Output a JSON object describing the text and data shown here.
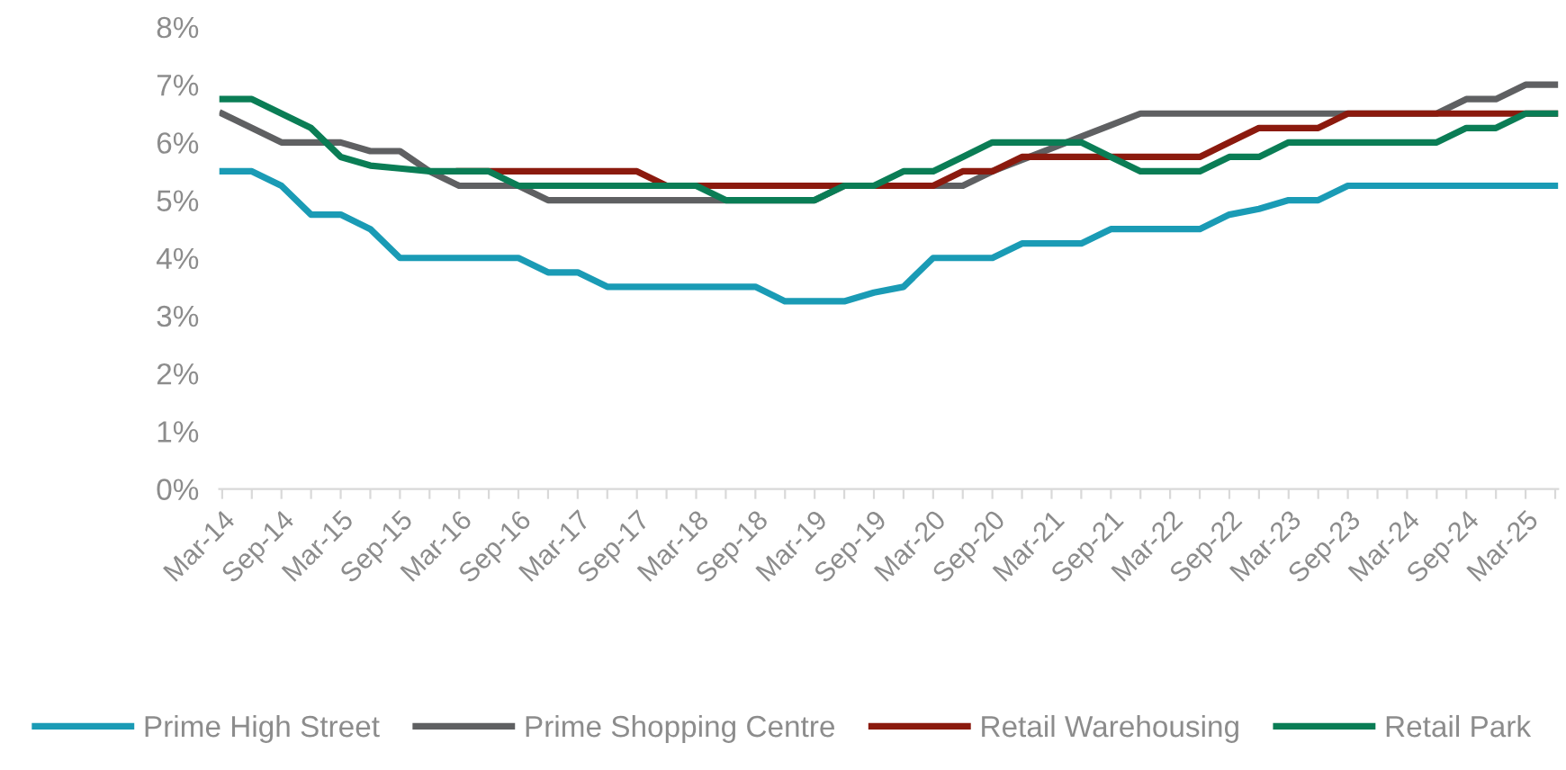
{
  "chart_data": {
    "type": "line",
    "categories": [
      "Mar-14",
      null,
      "Sep-14",
      null,
      "Mar-15",
      null,
      "Sep-15",
      null,
      "Mar-16",
      null,
      "Sep-16",
      null,
      "Mar-17",
      null,
      "Sep-17",
      null,
      "Mar-18",
      null,
      "Sep-18",
      null,
      "Mar-19",
      null,
      "Sep-19",
      null,
      "Mar-20",
      null,
      "Sep-20",
      null,
      "Mar-21",
      null,
      "Sep-21",
      null,
      "Mar-22",
      null,
      "Sep-22",
      null,
      "Mar-23",
      null,
      "Sep-23",
      null,
      "Mar-24",
      null,
      "Sep-24",
      null,
      "Mar-25",
      null
    ],
    "series": [
      {
        "name": "Prime High Street",
        "color": "#1a9bb5",
        "values": [
          5.5,
          5.5,
          5.25,
          4.75,
          4.75,
          4.5,
          4.0,
          4.0,
          4.0,
          4.0,
          4.0,
          3.75,
          3.75,
          3.5,
          3.5,
          3.5,
          3.5,
          3.5,
          3.5,
          3.25,
          3.25,
          3.25,
          3.4,
          3.5,
          4.0,
          4.0,
          4.0,
          4.25,
          4.25,
          4.25,
          4.5,
          4.5,
          4.5,
          4.5,
          4.75,
          4.85,
          5.0,
          5.0,
          5.25,
          5.25,
          5.25,
          5.25,
          5.25,
          5.25,
          5.25,
          5.25
        ]
      },
      {
        "name": "Prime Shopping Centre",
        "color": "#5f6062",
        "values": [
          6.5,
          6.25,
          6.0,
          6.0,
          6.0,
          5.85,
          5.85,
          5.5,
          5.25,
          5.25,
          5.25,
          5.0,
          5.0,
          5.0,
          5.0,
          5.0,
          5.0,
          5.0,
          5.0,
          5.0,
          5.0,
          5.25,
          5.25,
          5.25,
          5.25,
          5.25,
          5.5,
          5.7,
          5.9,
          6.1,
          6.3,
          6.5,
          6.5,
          6.5,
          6.5,
          6.5,
          6.5,
          6.5,
          6.5,
          6.5,
          6.5,
          6.5,
          6.75,
          6.75,
          7.0,
          7.0
        ]
      },
      {
        "name": "Retail Warehousing",
        "color": "#8b1a0e",
        "values": [
          null,
          null,
          null,
          null,
          null,
          null,
          null,
          null,
          5.5,
          5.5,
          5.5,
          5.5,
          5.5,
          5.5,
          5.5,
          5.25,
          5.25,
          5.25,
          5.25,
          5.25,
          5.25,
          5.25,
          5.25,
          5.25,
          5.25,
          5.5,
          5.5,
          5.75,
          5.75,
          5.75,
          5.75,
          5.75,
          5.75,
          5.75,
          6.0,
          6.25,
          6.25,
          6.25,
          6.5,
          6.5,
          6.5,
          6.5,
          6.5,
          6.5,
          6.5,
          6.5
        ]
      },
      {
        "name": "Retail Park",
        "color": "#0a7d55",
        "values": [
          6.75,
          6.75,
          6.5,
          6.25,
          5.75,
          5.6,
          5.55,
          5.5,
          5.5,
          5.5,
          5.25,
          5.25,
          5.25,
          5.25,
          5.25,
          5.25,
          5.25,
          5.0,
          5.0,
          5.0,
          5.0,
          5.25,
          5.25,
          5.5,
          5.5,
          5.75,
          6.0,
          6.0,
          6.0,
          6.0,
          5.75,
          5.5,
          5.5,
          5.5,
          5.75,
          5.75,
          6.0,
          6.0,
          6.0,
          6.0,
          6.0,
          6.0,
          6.25,
          6.25,
          6.5,
          6.5
        ]
      }
    ],
    "ylim": [
      0,
      8
    ],
    "yticks": [
      {
        "value": 0,
        "label": "0%"
      },
      {
        "value": 1,
        "label": "1%"
      },
      {
        "value": 2,
        "label": "2%"
      },
      {
        "value": 3,
        "label": "3%"
      },
      {
        "value": 4,
        "label": "4%"
      },
      {
        "value": 5,
        "label": "5%"
      },
      {
        "value": 6,
        "label": "6%"
      },
      {
        "value": 7,
        "label": "7%"
      },
      {
        "value": 8,
        "label": "8%"
      }
    ],
    "grid": false,
    "legend": "bottom",
    "marker": "none",
    "line_style": "solid"
  }
}
